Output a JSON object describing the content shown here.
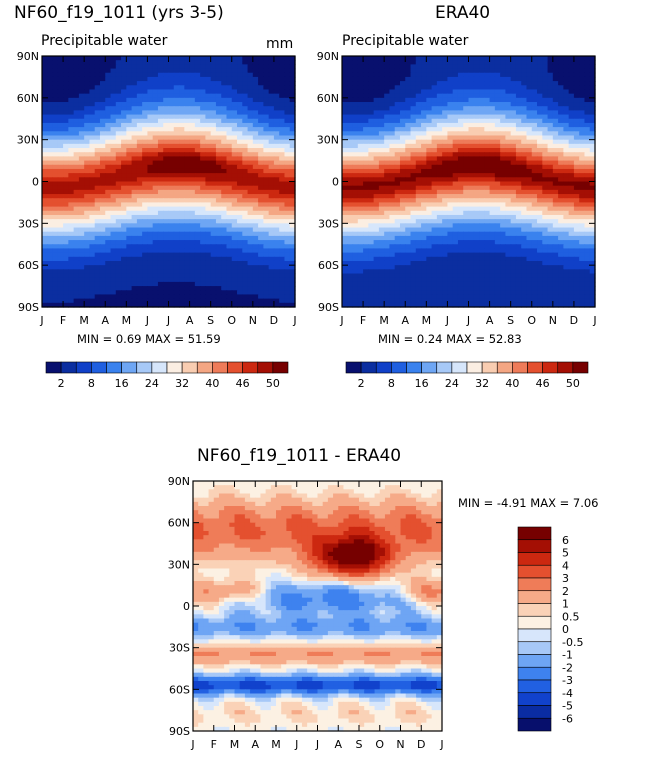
{
  "palette_abs": [
    "#08106e",
    "#0b2ea0",
    "#1040c8",
    "#1f5fe0",
    "#3a82ee",
    "#6ea6f4",
    "#a7c9f7",
    "#d6e6fb",
    "#fbeee2",
    "#f9cdb1",
    "#f4a683",
    "#ee7b59",
    "#e4502f",
    "#cc2810",
    "#a40f04",
    "#770000"
  ],
  "palette_diff": [
    "#070f6c",
    "#0a2ca3",
    "#1142cc",
    "#2160e2",
    "#3e82ef",
    "#6ea5f4",
    "#a7c8f7",
    "#d7e6fb",
    "#fcf1e3",
    "#fad2b7",
    "#f6aa88",
    "#ef7c58",
    "#e4502f",
    "#cc2810",
    "#a40f04",
    "#760000"
  ],
  "chart_data": [
    {
      "type": "heatmap",
      "panel": "model",
      "title": "NF60_f19_1011 (yrs 3-5)",
      "subtitle": "Precipitable water",
      "units": "mm",
      "x_tick_labels": [
        "J",
        "F",
        "M",
        "A",
        "M",
        "J",
        "J",
        "A",
        "S",
        "O",
        "N",
        "D",
        "J"
      ],
      "y_tick_labels": [
        "90N",
        "60N",
        "30N",
        "0",
        "30S",
        "60S",
        "90S"
      ],
      "ylim": [
        -90,
        90
      ],
      "min_value": "0.69",
      "max_value": "51.59",
      "stats_text": "MIN =   0.69  MAX =  51.59",
      "colorbar_labels": [
        "2",
        "8",
        "16",
        "24",
        "32",
        "40",
        "46",
        "50"
      ]
    },
    {
      "type": "heatmap",
      "panel": "observed",
      "title": "ERA40",
      "subtitle": "Precipitable water",
      "x_tick_labels": [
        "J",
        "F",
        "M",
        "A",
        "M",
        "J",
        "J",
        "A",
        "S",
        "O",
        "N",
        "D",
        "J"
      ],
      "y_tick_labels": [
        "90N",
        "60N",
        "30N",
        "0",
        "30S",
        "60S",
        "90S"
      ],
      "ylim": [
        -90,
        90
      ],
      "min_value": "0.24",
      "max_value": "52.83",
      "stats_text": "MIN =   0.24  MAX =  52.83",
      "colorbar_labels": [
        "2",
        "8",
        "16",
        "24",
        "32",
        "40",
        "46",
        "50"
      ]
    },
    {
      "type": "heatmap",
      "panel": "difference",
      "title": "NF60_f19_1011 - ERA40",
      "x_tick_labels": [
        "J",
        "F",
        "M",
        "A",
        "M",
        "J",
        "J",
        "A",
        "S",
        "O",
        "N",
        "D",
        "J"
      ],
      "y_tick_labels": [
        "90N",
        "60N",
        "30N",
        "0",
        "30S",
        "60S",
        "90S"
      ],
      "ylim": [
        -90,
        90
      ],
      "min_value": "-4.91",
      "max_value": "7.06",
      "stats_text": "MIN =  -4.91  MAX =    7.06",
      "colorbar_labels": [
        "6",
        "5",
        "4",
        "3",
        "2",
        "1",
        "0.5",
        "0",
        "-0.5",
        "-1",
        "-2",
        "-3",
        "-4",
        "-5",
        "-6"
      ]
    }
  ]
}
